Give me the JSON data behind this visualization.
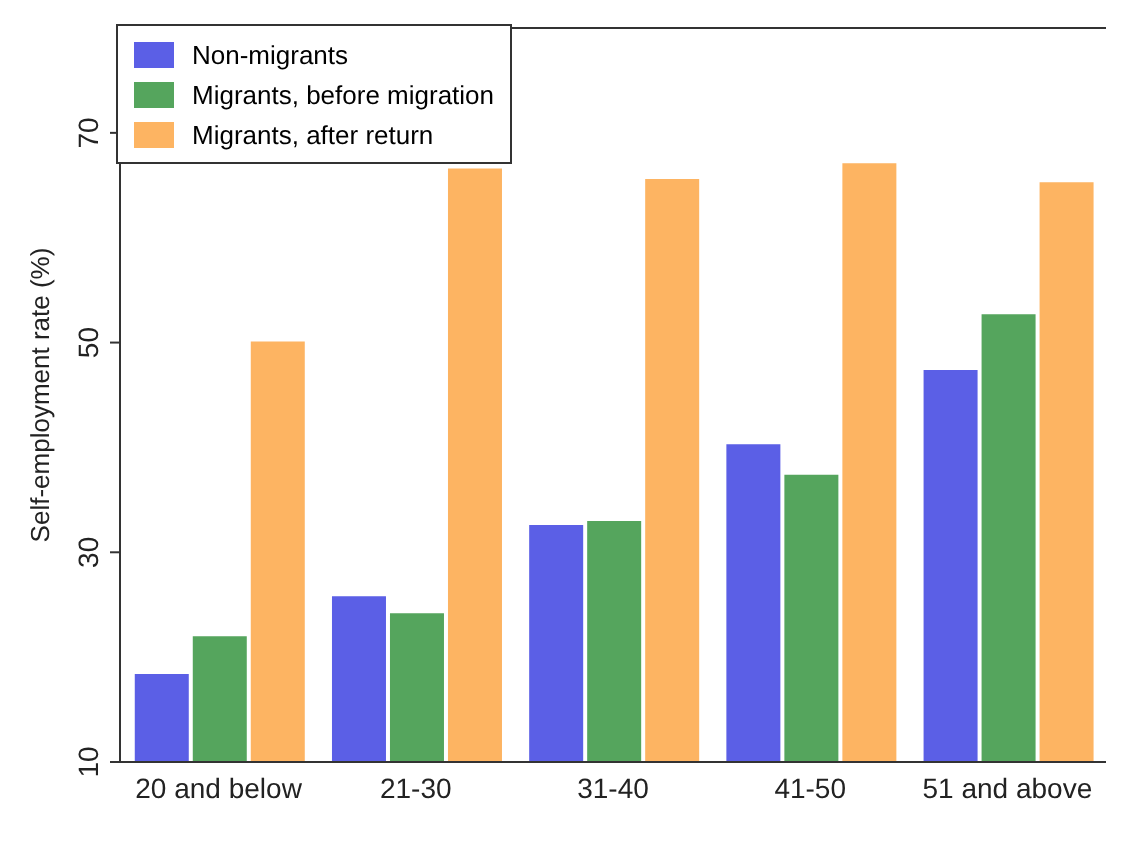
{
  "chart_data": {
    "type": "bar",
    "ylabel": "Self-employment rate (%)",
    "categories": [
      "20 and below",
      "21-30",
      "31-40",
      "41-50",
      "51 and above"
    ],
    "series": [
      {
        "name": "Non-migrants",
        "color": "#5b5fe6",
        "values": [
          18.3,
          25.7,
          32.5,
          40.2,
          47.3
        ]
      },
      {
        "name": "Migrants, before migration",
        "color": "#55a55d",
        "values": [
          21.9,
          24.1,
          32.9,
          37.3,
          52.6
        ]
      },
      {
        "name": "Migrants, after return",
        "color": "#fdb462",
        "values": [
          50,
          66.5,
          65.5,
          67,
          65.2
        ]
      }
    ],
    "ylim": [
      10,
      80
    ],
    "yticks": [
      10,
      30,
      50,
      70
    ],
    "grid": false,
    "legend": "top left"
  }
}
